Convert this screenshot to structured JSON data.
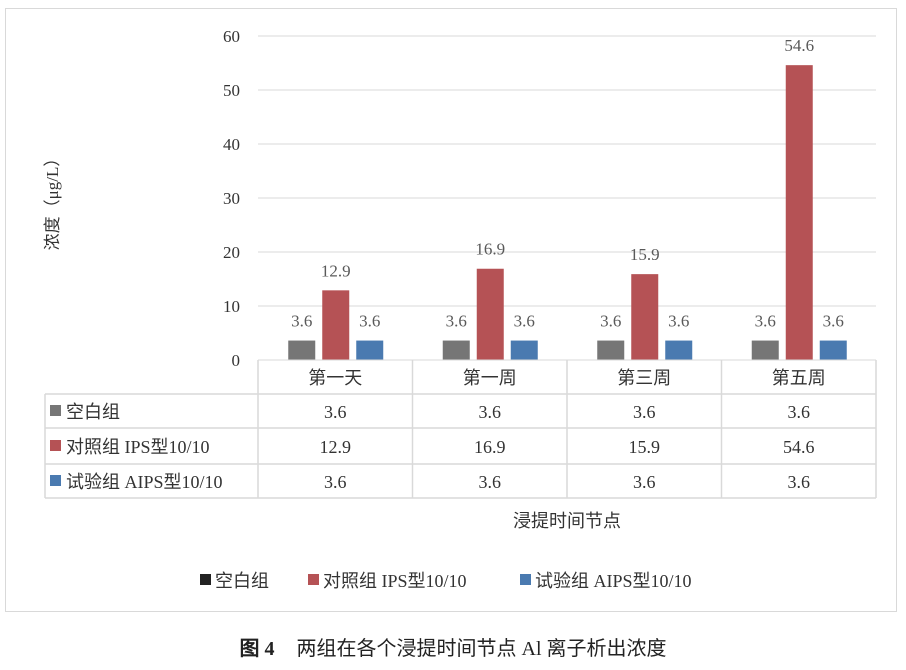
{
  "chart_data": {
    "type": "bar",
    "ylabel": "浓度（μg/L）",
    "xlabel": "浸提时间节点",
    "ylim": [
      0,
      60
    ],
    "yticks": [
      0,
      10,
      20,
      30,
      40,
      50,
      60
    ],
    "grid": true,
    "legend_placement": "bottom",
    "categories": [
      "第一天",
      "第一周",
      "第三周",
      "第五周"
    ],
    "series": [
      {
        "name": "空白组",
        "values": [
          3.6,
          3.6,
          3.6,
          3.6
        ],
        "color": "#767676",
        "legend_color": "#222222"
      },
      {
        "name": "对照组 IPS型10/10",
        "values": [
          12.9,
          16.9,
          15.9,
          54.6
        ],
        "color": "#b55255"
      },
      {
        "name": "试验组 AIPS型10/10",
        "values": [
          3.6,
          3.6,
          3.6,
          3.6
        ],
        "color": "#4a7ab0"
      }
    ]
  },
  "caption": {
    "label": "图 4",
    "text": "两组在各个浸提时间节点 Al 离子析出浓度"
  }
}
